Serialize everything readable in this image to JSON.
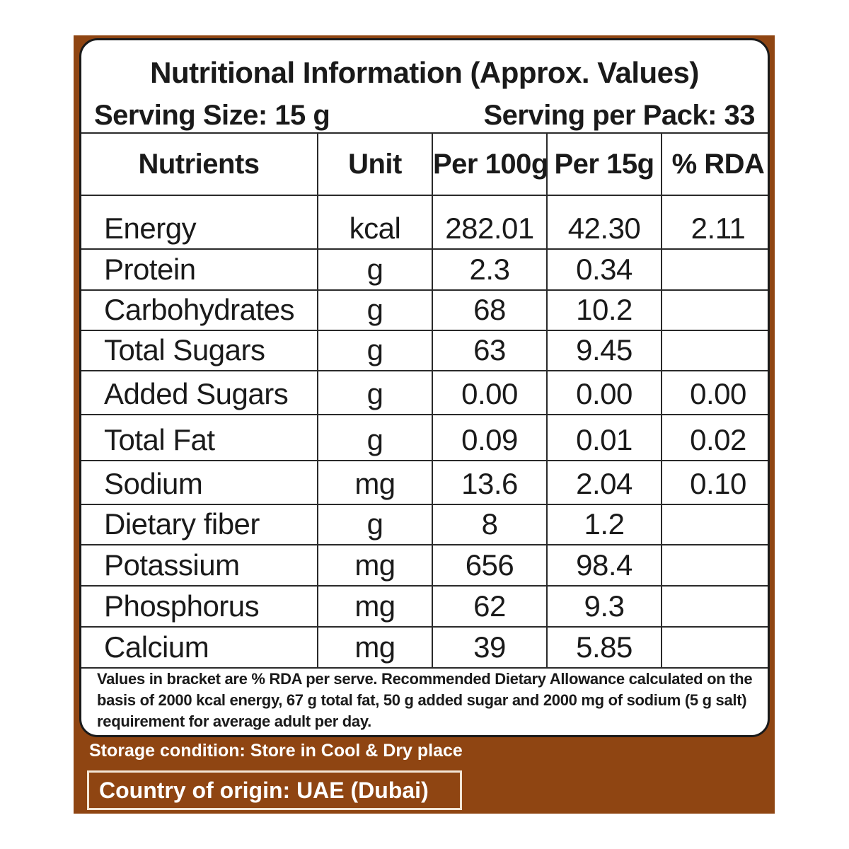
{
  "title": "Nutritional Information (Approx. Values)",
  "serving_size": "Serving Size: 15 g",
  "serving_per_pack": "Serving per Pack: 33",
  "table": {
    "headers": [
      "Nutrients",
      "Unit",
      "Per 100g",
      "Per 15g",
      "% RDA"
    ],
    "rows": [
      {
        "name": "Energy",
        "unit": "kcal",
        "per100": "282.01",
        "per15": "42.30",
        "rda": "2.11"
      },
      {
        "name": "Protein",
        "unit": "g",
        "per100": "2.3",
        "per15": "0.34",
        "rda": ""
      },
      {
        "name": "Carbohydrates",
        "unit": "g",
        "per100": "68",
        "per15": "10.2",
        "rda": ""
      },
      {
        "name": "Total Sugars",
        "unit": "g",
        "per100": "63",
        "per15": "9.45",
        "rda": ""
      },
      {
        "name": "Added Sugars",
        "unit": "g",
        "per100": "0.00",
        "per15": "0.00",
        "rda": "0.00"
      },
      {
        "name": "Total Fat",
        "unit": "g",
        "per100": "0.09",
        "per15": "0.01",
        "rda": "0.02"
      },
      {
        "name": "Sodium",
        "unit": "mg",
        "per100": "13.6",
        "per15": "2.04",
        "rda": "0.10"
      },
      {
        "name": "Dietary fiber",
        "unit": "g",
        "per100": "8",
        "per15": "1.2",
        "rda": ""
      },
      {
        "name": "Potassium",
        "unit": "mg",
        "per100": "656",
        "per15": "98.4",
        "rda": ""
      },
      {
        "name": "Phosphorus",
        "unit": "mg",
        "per100": "62",
        "per15": "9.3",
        "rda": ""
      },
      {
        "name": "Calcium",
        "unit": "mg",
        "per100": "39",
        "per15": "5.85",
        "rda": ""
      }
    ]
  },
  "notes": "Values in bracket are % RDA per serve. Recommended Dietary Allowance calculated on the basis of 2000 kcal energy, 67 g total fat, 50 g added sugar and 2000 mg of sodium (5 g salt) requirement for average adult per day.",
  "storage": "Storage condition: Store in Cool & Dry place",
  "origin": "Country of origin: UAE (Dubai)",
  "colors": {
    "panel": "#8f4512",
    "card": "#ffffff",
    "text": "#1a1a1a"
  }
}
